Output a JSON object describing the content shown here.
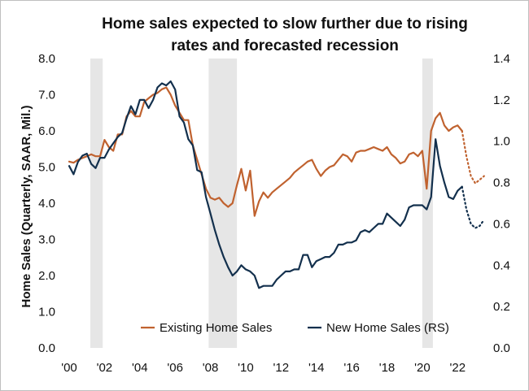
{
  "chart_data": {
    "type": "line",
    "title_line1": "Home sales expected to slow further due to rising",
    "title_line2": "rates and forecasted recession",
    "ylabel": "Home Sales (Quarterly, SAAR, Mil.)",
    "xlim": [
      2000,
      2023.6
    ],
    "ylim_left": [
      0,
      8
    ],
    "ylim_right": [
      0,
      1.4
    ],
    "x_ticks": [
      2000,
      2002,
      2004,
      2006,
      2008,
      2010,
      2012,
      2014,
      2016,
      2018,
      2020,
      2022
    ],
    "x_tick_labels": [
      "'00",
      "'02",
      "'04",
      "'06",
      "'08",
      "'10",
      "'12",
      "'14",
      "'16",
      "'18",
      "'20",
      "'22"
    ],
    "y_left_ticks": [
      "0.0",
      "1.0",
      "2.0",
      "3.0",
      "4.0",
      "5.0",
      "6.0",
      "7.0",
      "8.0"
    ],
    "y_right_ticks": [
      "0.0",
      "0.2",
      "0.4",
      "0.6",
      "0.8",
      "1.0",
      "1.2",
      "1.4"
    ],
    "recessions": [
      [
        2001.2,
        2001.9
      ],
      [
        2007.9,
        2009.5
      ],
      [
        2020.0,
        2020.6
      ]
    ],
    "colors": {
      "existing": "#c0622f",
      "new": "#13304d",
      "recession": "#e6e6e6"
    },
    "series": [
      {
        "name": "Existing Home Sales",
        "axis": "left",
        "x": [
          2000,
          2000.25,
          2000.5,
          2000.75,
          2001,
          2001.25,
          2001.5,
          2001.75,
          2002,
          2002.25,
          2002.5,
          2002.75,
          2003,
          2003.25,
          2003.5,
          2003.75,
          2004,
          2004.25,
          2004.5,
          2004.75,
          2005,
          2005.25,
          2005.5,
          2005.75,
          2006,
          2006.25,
          2006.5,
          2006.75,
          2007,
          2007.25,
          2007.5,
          2007.75,
          2008,
          2008.25,
          2008.5,
          2008.75,
          2009,
          2009.25,
          2009.5,
          2009.75,
          2010,
          2010.25,
          2010.5,
          2010.75,
          2011,
          2011.25,
          2011.5,
          2011.75,
          2012,
          2012.25,
          2012.5,
          2012.75,
          2013,
          2013.25,
          2013.5,
          2013.75,
          2014,
          2014.25,
          2014.5,
          2014.75,
          2015,
          2015.25,
          2015.5,
          2015.75,
          2016,
          2016.25,
          2016.5,
          2016.75,
          2017,
          2017.25,
          2017.5,
          2017.75,
          2018,
          2018.25,
          2018.5,
          2018.75,
          2019,
          2019.25,
          2019.5,
          2019.75,
          2020,
          2020.25,
          2020.5,
          2020.75,
          2021,
          2021.25,
          2021.5,
          2021.75,
          2022,
          2022.25
        ],
        "values": [
          5.15,
          5.12,
          5.2,
          5.25,
          5.3,
          5.35,
          5.3,
          5.3,
          5.75,
          5.55,
          5.45,
          5.9,
          5.9,
          6.4,
          6.55,
          6.4,
          6.4,
          6.8,
          6.9,
          7.0,
          7.05,
          7.15,
          7.2,
          7.0,
          6.7,
          6.5,
          6.3,
          6.3,
          5.6,
          5.2,
          4.8,
          4.4,
          4.15,
          4.1,
          4.15,
          4.0,
          3.9,
          4.0,
          4.5,
          4.95,
          4.35,
          4.9,
          3.65,
          4.05,
          4.3,
          4.15,
          4.3,
          4.4,
          4.5,
          4.6,
          4.7,
          4.85,
          4.95,
          5.05,
          5.15,
          5.2,
          4.95,
          4.75,
          4.9,
          5.0,
          5.05,
          5.2,
          5.35,
          5.3,
          5.15,
          5.4,
          5.45,
          5.45,
          5.5,
          5.55,
          5.5,
          5.45,
          5.55,
          5.35,
          5.25,
          5.1,
          5.15,
          5.35,
          5.4,
          5.3,
          5.45,
          4.4,
          6.0,
          6.35,
          6.5,
          6.15,
          6.0,
          6.1,
          6.15,
          6.0
        ]
      },
      {
        "name": "New Home Sales (RS)",
        "axis": "right",
        "x": [
          2000,
          2000.25,
          2000.5,
          2000.75,
          2001,
          2001.25,
          2001.5,
          2001.75,
          2002,
          2002.25,
          2002.5,
          2002.75,
          2003,
          2003.25,
          2003.5,
          2003.75,
          2004,
          2004.25,
          2004.5,
          2004.75,
          2005,
          2005.25,
          2005.5,
          2005.75,
          2006,
          2006.25,
          2006.5,
          2006.75,
          2007,
          2007.25,
          2007.5,
          2007.75,
          2008,
          2008.25,
          2008.5,
          2008.75,
          2009,
          2009.25,
          2009.5,
          2009.75,
          2010,
          2010.25,
          2010.5,
          2010.75,
          2011,
          2011.25,
          2011.5,
          2011.75,
          2012,
          2012.25,
          2012.5,
          2012.75,
          2013,
          2013.25,
          2013.5,
          2013.75,
          2014,
          2014.25,
          2014.5,
          2014.75,
          2015,
          2015.25,
          2015.5,
          2015.75,
          2016,
          2016.25,
          2016.5,
          2016.75,
          2017,
          2017.25,
          2017.5,
          2017.75,
          2018,
          2018.25,
          2018.5,
          2018.75,
          2019,
          2019.25,
          2019.5,
          2019.75,
          2020,
          2020.25,
          2020.5,
          2020.75,
          2021,
          2021.25,
          2021.5,
          2021.75,
          2022,
          2022.25
        ],
        "values": [
          0.88,
          0.84,
          0.9,
          0.93,
          0.94,
          0.89,
          0.87,
          0.92,
          0.92,
          0.96,
          0.99,
          1.02,
          1.04,
          1.11,
          1.17,
          1.13,
          1.2,
          1.2,
          1.16,
          1.2,
          1.26,
          1.28,
          1.27,
          1.29,
          1.25,
          1.12,
          1.09,
          1.01,
          0.98,
          0.86,
          0.85,
          0.73,
          0.65,
          0.57,
          0.5,
          0.44,
          0.39,
          0.35,
          0.37,
          0.4,
          0.38,
          0.37,
          0.35,
          0.29,
          0.3,
          0.3,
          0.3,
          0.33,
          0.35,
          0.37,
          0.37,
          0.38,
          0.38,
          0.45,
          0.45,
          0.39,
          0.42,
          0.43,
          0.44,
          0.44,
          0.46,
          0.5,
          0.5,
          0.51,
          0.51,
          0.52,
          0.56,
          0.57,
          0.56,
          0.58,
          0.6,
          0.6,
          0.65,
          0.63,
          0.61,
          0.59,
          0.62,
          0.68,
          0.69,
          0.69,
          0.69,
          0.67,
          0.73,
          1.01,
          0.88,
          0.8,
          0.73,
          0.72,
          0.76,
          0.78
        ]
      },
      {
        "name": "Existing Home Sales (forecast)",
        "axis": "left",
        "style": "dotted",
        "x": [
          2022.25,
          2022.5,
          2022.75,
          2023,
          2023.25,
          2023.5
        ],
        "values": [
          6.0,
          5.3,
          4.75,
          4.55,
          4.65,
          4.75
        ]
      },
      {
        "name": "New Home Sales (forecast)",
        "axis": "right",
        "style": "dotted",
        "x": [
          2022.25,
          2022.5,
          2022.75,
          2023,
          2023.25,
          2023.5
        ],
        "values": [
          0.78,
          0.67,
          0.6,
          0.58,
          0.59,
          0.62
        ]
      }
    ],
    "legend": [
      "Existing Home Sales",
      "New Home Sales (RS)"
    ],
    "legend_position": "bottom-center"
  }
}
